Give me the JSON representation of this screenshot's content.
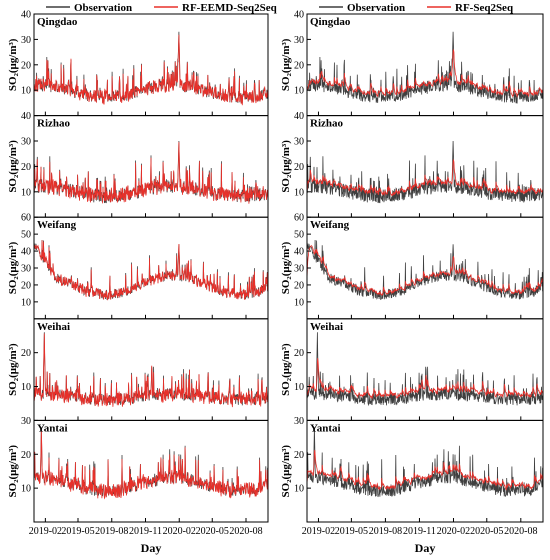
{
  "colors": {
    "observation": "#3f3f3f",
    "model": "#e8302a"
  },
  "xlabel": "Day",
  "x_ticks": [
    "2019-02",
    "2019-05",
    "2019-08",
    "2019-11",
    "2020-02",
    "2020-05",
    "2020-08"
  ],
  "chart_data": [
    {
      "type": "line",
      "legend": [
        "Observation",
        "RF-EEMD-Seq2Seq"
      ],
      "xlabel": "Day",
      "x_range": [
        "2019-01-01",
        "2020-09-30"
      ],
      "x_ticks": [
        "2019-02",
        "2019-05",
        "2019-08",
        "2019-11",
        "2020-02",
        "2020-05",
        "2020-08"
      ],
      "panels": [
        {
          "city": "Qingdao",
          "ylabel": "SO₂(μg/m³)",
          "ylim": [
            0,
            40
          ],
          "yticks": [
            10,
            20,
            30,
            40
          ]
        },
        {
          "city": "Rizhao",
          "ylabel": "SO₂(μg/m³)",
          "ylim": [
            0,
            40
          ],
          "yticks": [
            10,
            20,
            30,
            40
          ]
        },
        {
          "city": "Weifang",
          "ylabel": "SO₂(μg/m³)",
          "ylim": [
            0,
            60
          ],
          "yticks": [
            10,
            20,
            30,
            40,
            50,
            60
          ]
        },
        {
          "city": "Weihai",
          "ylabel": "SO₂(μg/m³)",
          "ylim": [
            0,
            30
          ],
          "yticks": [
            10,
            20
          ]
        },
        {
          "city": "Yantai",
          "ylabel": "SO₂(μg/m³)",
          "ylim": [
            0,
            30
          ],
          "yticks": [
            10,
            20,
            30
          ]
        }
      ]
    },
    {
      "type": "line",
      "legend": [
        "Observation",
        "RF-Seq2Seq"
      ],
      "xlabel": "Day",
      "x_range": [
        "2019-01-01",
        "2020-09-30"
      ],
      "x_ticks": [
        "2019-02",
        "2019-05",
        "2019-08",
        "2019-11",
        "2020-02",
        "2020-05",
        "2020-08"
      ],
      "panels": [
        {
          "city": "Qingdao",
          "ylabel": "SO₂(μg/m³)",
          "ylim": [
            0,
            40
          ],
          "yticks": [
            10,
            20,
            30,
            40
          ]
        },
        {
          "city": "Rizhao",
          "ylabel": "SO₂(μg/m³)",
          "ylim": [
            0,
            40
          ],
          "yticks": [
            10,
            20,
            30,
            40
          ]
        },
        {
          "city": "Weifang",
          "ylabel": "SO₂(μg/m³)",
          "ylim": [
            0,
            60
          ],
          "yticks": [
            10,
            20,
            30,
            40,
            50,
            60
          ]
        },
        {
          "city": "Weihai",
          "ylabel": "SO₂(μg/m³)",
          "ylim": [
            0,
            30
          ],
          "yticks": [
            10,
            20
          ]
        },
        {
          "city": "Yantai",
          "ylabel": "SO₂(μg/m³)",
          "ylim": [
            0,
            30
          ],
          "yticks": [
            10,
            20,
            30
          ]
        }
      ]
    }
  ]
}
